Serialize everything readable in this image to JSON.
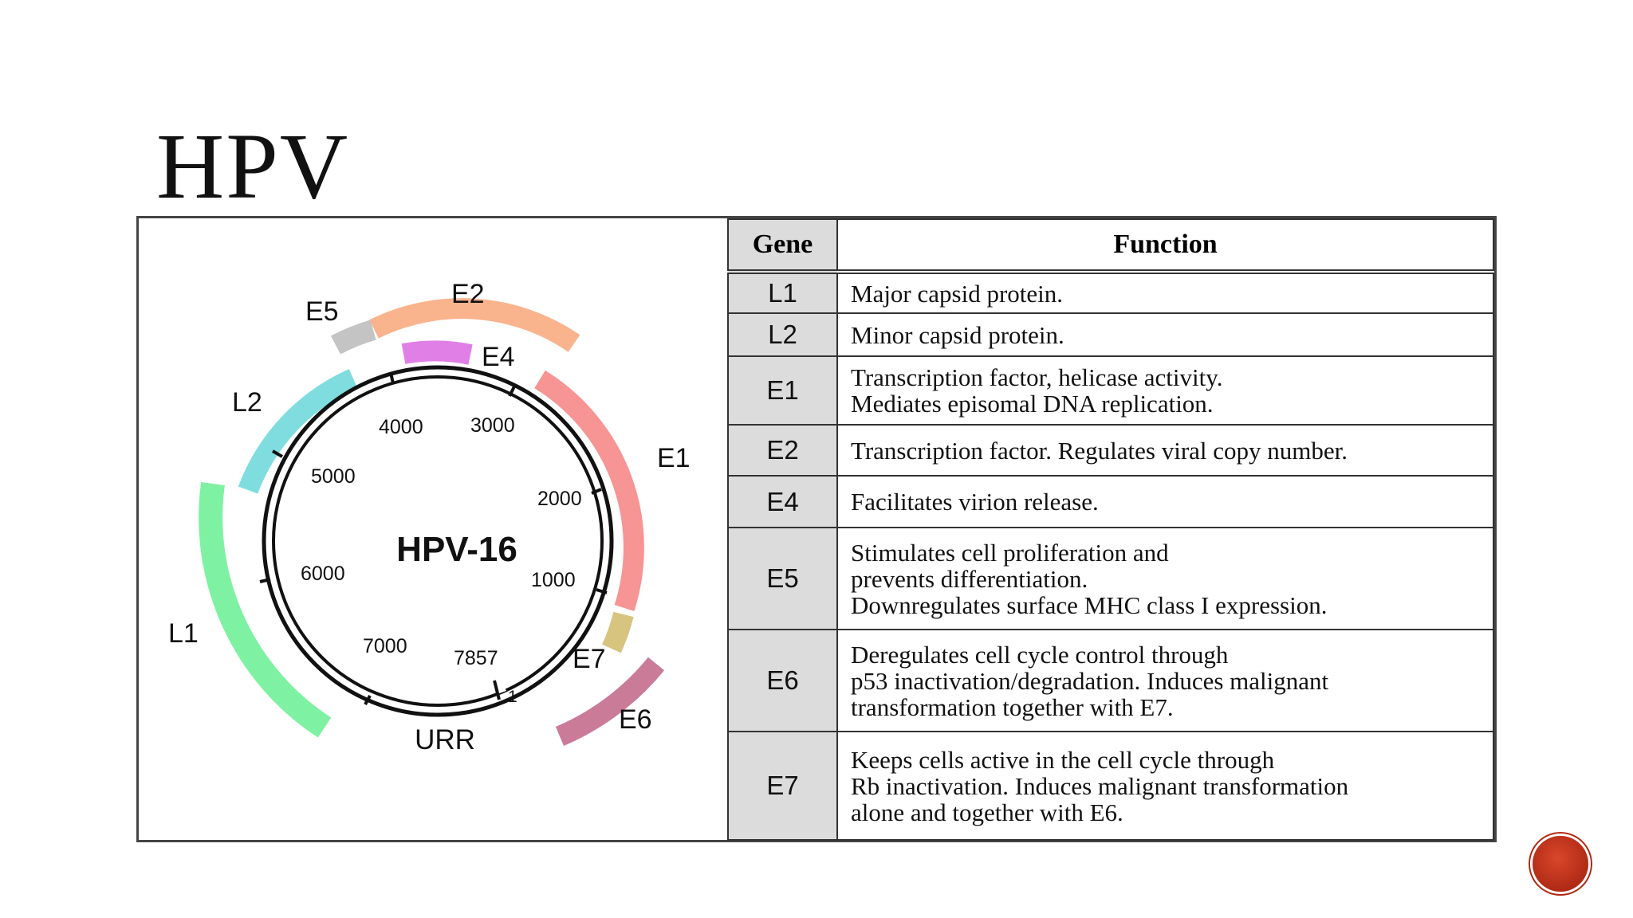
{
  "slide": {
    "title": "HPV"
  },
  "genome": {
    "name": "HPV-16",
    "region_label": "URR",
    "position_labels": [
      "4000",
      "3000",
      "5000",
      "2000",
      "6000",
      "1000",
      "7000",
      "7857",
      "1"
    ],
    "genes": [
      {
        "label": "E5",
        "color": "#c4c4c4"
      },
      {
        "label": "E2",
        "color": "#f9b48d"
      },
      {
        "label": "E4",
        "color": "#e07fe6"
      },
      {
        "label": "L2",
        "color": "#7fdde0"
      },
      {
        "label": "E1",
        "color": "#f79494"
      },
      {
        "label": "L1",
        "color": "#7ef2a2"
      },
      {
        "label": "E7",
        "color": "#d6c47f"
      },
      {
        "label": "E6",
        "color": "#c97b98"
      }
    ]
  },
  "table": {
    "headers": {
      "gene": "Gene",
      "function": "Function"
    },
    "rows": [
      {
        "gene": "L1",
        "function": "Major capsid protein."
      },
      {
        "gene": "L2",
        "function": "Minor capsid protein."
      },
      {
        "gene": "E1",
        "function": "Transcription factor, helicase activity.\nMediates episomal DNA replication."
      },
      {
        "gene": "E2",
        "function": "Transcription factor. Regulates viral copy number."
      },
      {
        "gene": "E4",
        "function": "Facilitates virion release."
      },
      {
        "gene": "E5",
        "function": "Stimulates cell proliferation and\nprevents differentiation.\nDownregulates surface MHC class I expression."
      },
      {
        "gene": "E6",
        "function": "Deregulates cell cycle control through\np53 inactivation/degradation.  Induces malignant\ntransformation together with E7."
      },
      {
        "gene": "E7",
        "function": "Keeps cells active in the cell cycle through\nRb inactivation.  Induces malignant transformation\nalone and together with E6."
      }
    ]
  }
}
